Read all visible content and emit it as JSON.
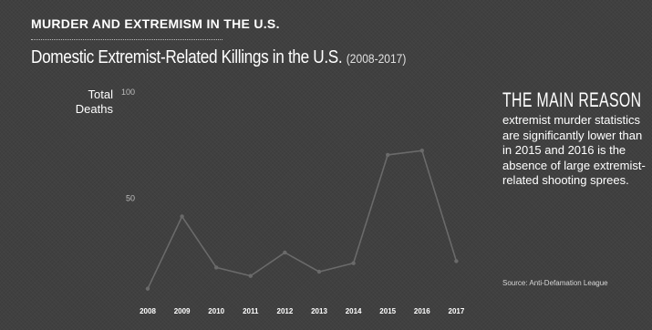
{
  "header": {
    "kicker": "MURDER AND EXTREMISM IN THE U.S.",
    "title": "Domestic Extremist-Related Killings in the U.S.",
    "title_years": "(2008-2017)"
  },
  "sidebar": {
    "heading": "THE MAIN REASON",
    "text": "extremist murder statistics are significantly lower than in 2015 and 2016 is the absence of large extremist-related shooting sprees.",
    "source": "Source: Anti-Defamation League"
  },
  "colors": {
    "background": "#404040",
    "line": "#6a6a6a",
    "point": "#6a6a6a",
    "text": "#ffffff"
  },
  "chart_data": {
    "type": "line",
    "title": "Domestic Extremist-Related Killings in the U.S. (2008-2017)",
    "ylabel": "Total Deaths",
    "xlabel": "",
    "x": [
      "2008",
      "2009",
      "2010",
      "2011",
      "2012",
      "2013",
      "2014",
      "2015",
      "2016",
      "2017"
    ],
    "series": [
      {
        "values": [
          7,
          41,
          17,
          13,
          24,
          15,
          19,
          70,
          72,
          20
        ]
      }
    ],
    "ylim": [
      0,
      100
    ],
    "yticks": [
      50,
      100
    ],
    "grid": false,
    "legend": "none"
  }
}
